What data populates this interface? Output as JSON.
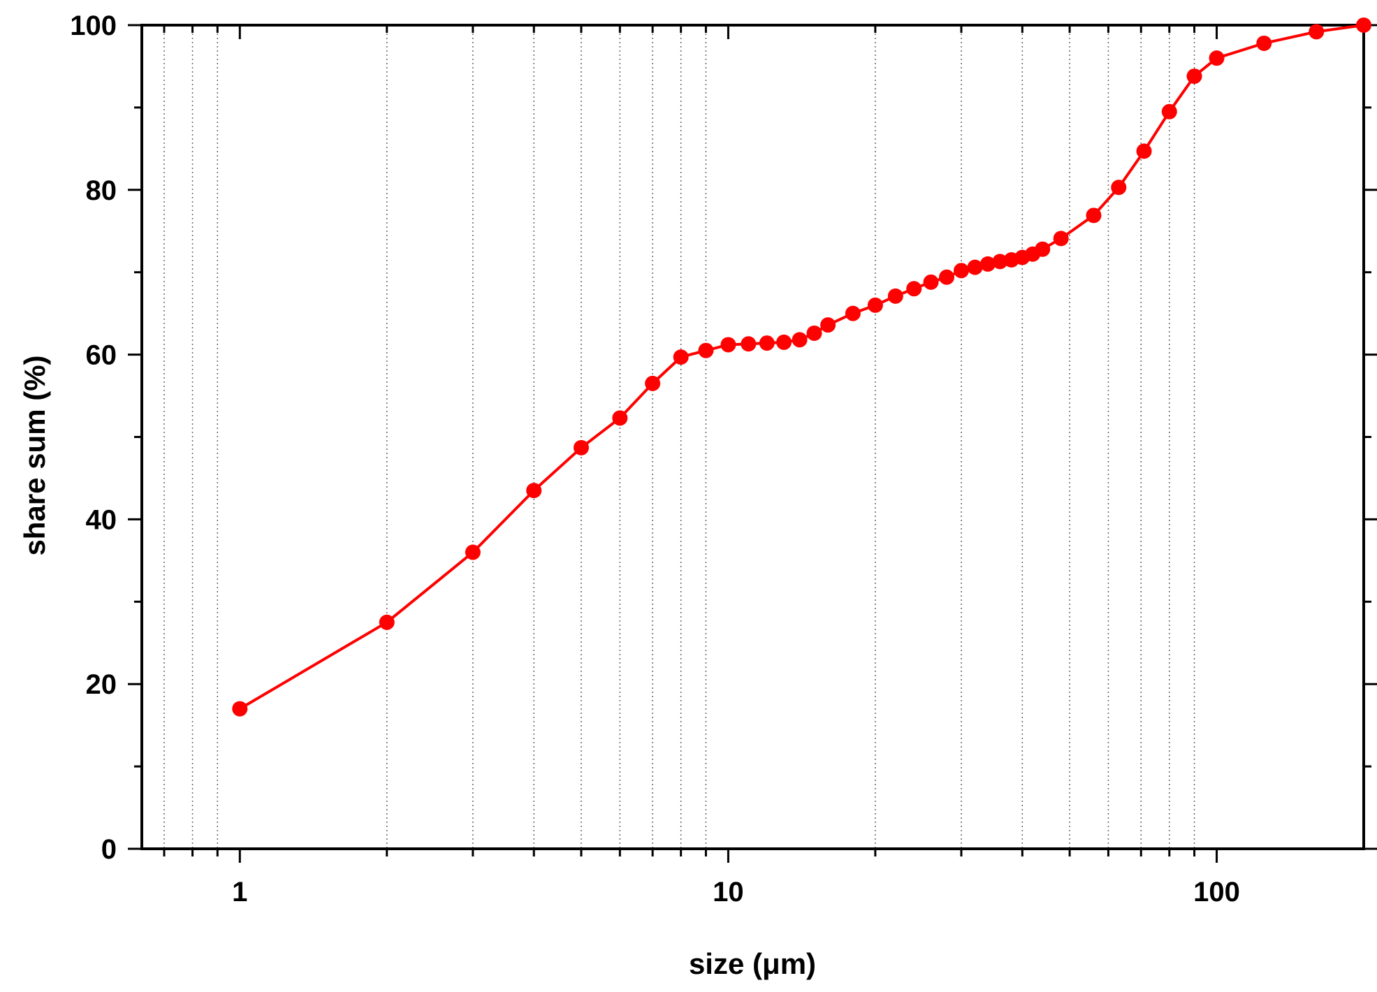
{
  "chart_data": {
    "type": "line",
    "xlabel": "size (μm)",
    "ylabel": "share sum (%)",
    "x_scale": "log",
    "xlim": [
      0.63,
      200
    ],
    "ylim": [
      0,
      100
    ],
    "x_ticks": [
      1,
      10,
      100
    ],
    "x_tick_labels": [
      "1",
      "10",
      "100"
    ],
    "y_ticks": [
      0,
      20,
      40,
      60,
      80,
      100
    ],
    "y_tick_labels": [
      "0",
      "20",
      "40",
      "60",
      "80",
      "100"
    ],
    "grid": "vertical dotted lines at minor log ticks",
    "series": [
      {
        "color": "#ff0000",
        "marker": "circle",
        "points": [
          [
            1,
            17.0
          ],
          [
            2,
            27.5
          ],
          [
            3,
            36.0
          ],
          [
            4,
            43.5
          ],
          [
            5,
            48.7
          ],
          [
            6,
            52.3
          ],
          [
            7,
            56.5
          ],
          [
            8,
            59.7
          ],
          [
            9,
            60.5
          ],
          [
            10,
            61.2
          ],
          [
            11,
            61.3
          ],
          [
            12,
            61.4
          ],
          [
            13,
            61.5
          ],
          [
            14,
            61.8
          ],
          [
            15,
            62.6
          ],
          [
            16,
            63.6
          ],
          [
            18,
            65.0
          ],
          [
            20,
            66.0
          ],
          [
            22,
            67.1
          ],
          [
            24,
            68.0
          ],
          [
            26,
            68.8
          ],
          [
            28,
            69.4
          ],
          [
            30,
            70.2
          ],
          [
            32,
            70.6
          ],
          [
            34,
            71.0
          ],
          [
            36,
            71.3
          ],
          [
            38,
            71.5
          ],
          [
            40,
            71.8
          ],
          [
            42,
            72.2
          ],
          [
            44,
            72.8
          ],
          [
            48,
            74.1
          ],
          [
            56,
            76.9
          ],
          [
            63,
            80.3
          ],
          [
            71,
            84.7
          ],
          [
            80,
            89.5
          ],
          [
            90,
            93.8
          ],
          [
            100,
            96.0
          ],
          [
            125,
            97.8
          ],
          [
            160,
            99.2
          ],
          [
            200,
            100.0
          ]
        ]
      }
    ]
  }
}
